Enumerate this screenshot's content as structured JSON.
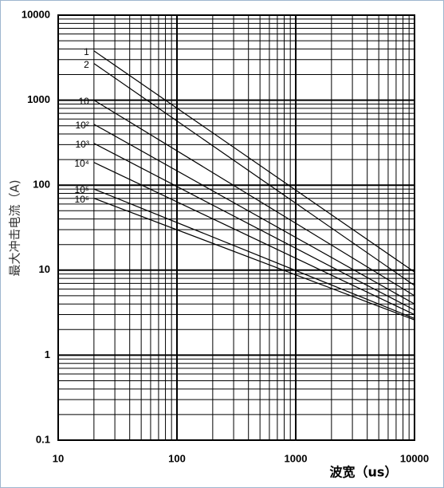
{
  "chart_data": {
    "type": "line",
    "y_label": "最大冲击电流（A)",
    "x_label": "波宽（us）",
    "x_scale": "log",
    "y_scale": "log",
    "grid": true,
    "xlim": [
      10,
      10000
    ],
    "xticks": [
      10,
      100,
      1000,
      10000
    ],
    "ylim": [
      0.1,
      10000
    ],
    "yticks": [
      0.1,
      1,
      10,
      100,
      1000,
      10000
    ],
    "x": [
      20,
      10000
    ],
    "series": [
      {
        "name": "1",
        "color": "#000000",
        "values": [
          3800,
          9.5
        ]
      },
      {
        "name": "2",
        "color": "#000000",
        "values": [
          2700,
          6.6
        ]
      },
      {
        "name": "10",
        "color": "#000000",
        "values": [
          1000,
          5
        ]
      },
      {
        "name": "10²",
        "color": "#000000",
        "values": [
          520,
          4
        ]
      },
      {
        "name": "10³",
        "color": "#000000",
        "values": [
          310,
          3.4
        ]
      },
      {
        "name": "10⁴",
        "color": "#000000",
        "values": [
          185,
          3
        ]
      },
      {
        "name": "10⁵",
        "color": "#000000",
        "values": [
          90,
          2.7
        ]
      },
      {
        "name": "10⁶",
        "color": "#000000",
        "values": [
          70,
          2.6
        ]
      }
    ]
  }
}
